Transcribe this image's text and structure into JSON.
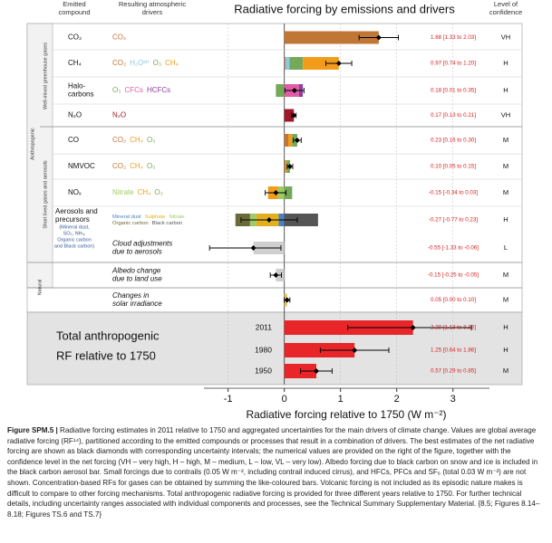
{
  "chart_data": {
    "type": "bar",
    "title": "Radiative forcing by emissions and drivers",
    "headers": {
      "compound": [
        "Emitted",
        "compound"
      ],
      "drivers": [
        "Resulting atmospheric",
        "drivers"
      ],
      "confidence": [
        "Level of",
        "confidence"
      ]
    },
    "groups": {
      "anthropogenic": "Anthropogenic",
      "wmghg": "Well-mixed greenhouse gases",
      "short_lived": "Short lived gases and aerosols",
      "natural": "Natural"
    },
    "xlabel": "Radiative forcing relative to 1750 (W m⁻²)",
    "xlim": [
      -1.43,
      3.65
    ],
    "xticks": [
      -1,
      0,
      1,
      2,
      3
    ],
    "grid": true,
    "rows": [
      {
        "compound": [
          "CO₂"
        ],
        "value": 1.68,
        "low": 1.33,
        "high": 2.03,
        "value_label": "1.68 [1.33 to 2.03]",
        "confidence": "VH",
        "segments": [
          {
            "name": "CO₂",
            "color": "#c07634",
            "value": 1.68
          }
        ]
      },
      {
        "compound": [
          "CH₄"
        ],
        "value": 0.97,
        "low": 0.74,
        "high": 1.2,
        "value_label": "0.97 [0.74 to 1.20]",
        "confidence": "H",
        "segments": [
          {
            "name": "CO₂",
            "color": "#c07634",
            "value": 0.02
          },
          {
            "name": "H₂Oˢᵗʳ",
            "color": "#8ec6e6",
            "value": 0.07
          },
          {
            "name": "O₃",
            "color": "#74a95a",
            "value": 0.24
          },
          {
            "name": "CH₄",
            "color": "#f39c1b",
            "value": 0.64
          }
        ]
      },
      {
        "compound": [
          "Halo-",
          "carbons"
        ],
        "value": 0.18,
        "low": 0.01,
        "high": 0.35,
        "value_label": "0.18 [0.01 to 0.35]",
        "confidence": "H",
        "segments": [
          {
            "name": "O₃",
            "color": "#74a95a",
            "value": -0.15
          },
          {
            "name": "CFCs",
            "color": "#e35ba8",
            "value": 0.26
          },
          {
            "name": "HCFCs",
            "color": "#8e3f98",
            "value": 0.07
          }
        ]
      },
      {
        "compound": [
          "N₂O"
        ],
        "value": 0.17,
        "low": 0.13,
        "high": 0.21,
        "value_label": "0.17 [0.13 to 0.21]",
        "confidence": "VH",
        "segments": [
          {
            "name": "N₂O",
            "color": "#a0192b",
            "value": 0.17
          }
        ]
      },
      {
        "compound": [
          "CO"
        ],
        "value": 0.23,
        "low": 0.16,
        "high": 0.3,
        "value_label": "0.23 [0.16 to 0.30]",
        "confidence": "M",
        "segments": [
          {
            "name": "CO₂",
            "color": "#c07634",
            "value": 0.07
          },
          {
            "name": "CH₄",
            "color": "#f39c1b",
            "value": 0.07
          },
          {
            "name": "O₃",
            "color": "#74a95a",
            "value": 0.09
          }
        ]
      },
      {
        "compound": [
          "NMVOC"
        ],
        "value": 0.1,
        "low": 0.05,
        "high": 0.15,
        "value_label": "0.10 [0.05 to 0.15]",
        "confidence": "M",
        "segments": [
          {
            "name": "CO₂",
            "color": "#c07634",
            "value": 0.02
          },
          {
            "name": "CH₄",
            "color": "#f39c1b",
            "value": 0.02
          },
          {
            "name": "O₃",
            "color": "#74a95a",
            "value": 0.06
          }
        ]
      },
      {
        "compound": [
          "NOₓ"
        ],
        "value": -0.15,
        "low": -0.34,
        "high": 0.03,
        "value_label": "-0.15 [-0.34 to 0.03]",
        "confidence": "M",
        "segments": [
          {
            "name": "Nitrate",
            "color": "#9ccc65",
            "value": -0.11
          },
          {
            "name": "CH₄",
            "color": "#f39c1b",
            "value": -0.18
          },
          {
            "name": "O₃",
            "color": "#74a95a",
            "value": 0.14
          }
        ]
      },
      {
        "compound": [
          "Aerosols and",
          "precursors"
        ],
        "compound_note": [
          "(Mineral dust,",
          "SO₂, NH₃,",
          "Organic carbon",
          "and Black carbon)"
        ],
        "value": -0.27,
        "low": -0.77,
        "high": 0.23,
        "value_label": "-0.27 [-0.77 to 0.23]",
        "confidence": "H",
        "segments": [
          {
            "name": "Mineral dust",
            "color": "#4a7fc0",
            "value": -0.1
          },
          {
            "name": "Sulphate",
            "color": "#e0b020",
            "value": -0.4
          },
          {
            "name": "Nitrate",
            "color": "#9ccc65",
            "value": -0.11
          },
          {
            "name": "Organic carbon",
            "color": "#6b6b3a",
            "value": -0.26
          },
          {
            "name": "Black carbon",
            "color": "#555555",
            "value": 0.6
          }
        ]
      },
      {
        "driver_label": [
          "Cloud adjustments",
          "due to aerosols"
        ],
        "value": -0.55,
        "low": -1.33,
        "high": -0.06,
        "value_label": "-0.55 [-1.33 to -0.06]",
        "confidence": "L",
        "color": "#cfcfcf"
      },
      {
        "driver_label": [
          "Albedo change",
          "due to land use"
        ],
        "value": -0.15,
        "low": -0.25,
        "high": -0.05,
        "value_label": "-0.15 [-0.25 to -0.05]",
        "confidence": "M",
        "color": "#cfcfcf"
      },
      {
        "driver_label": [
          "Changes in",
          "solar irradiance"
        ],
        "value": 0.05,
        "low": 0.0,
        "high": 0.1,
        "value_label": "0.05 [0.00 to 0.10]",
        "confidence": "M",
        "color": "#e0c060"
      }
    ],
    "totals": {
      "label": [
        "Total anthropogenic",
        "RF relative to 1750"
      ],
      "color": "#e8262a",
      "rows": [
        {
          "year": "2011",
          "value": 2.29,
          "low": 1.13,
          "high": 3.33,
          "value_label": "2.29 [1.13 to 3.33]",
          "confidence": "H"
        },
        {
          "year": "1980",
          "value": 1.25,
          "low": 0.64,
          "high": 1.86,
          "value_label": "1.25 [0.64 to 1.86]",
          "confidence": "H"
        },
        {
          "year": "1950",
          "value": 0.57,
          "low": 0.29,
          "high": 0.85,
          "value_label": "0.57 [0.29 to 0.85]",
          "confidence": "M"
        }
      ]
    }
  },
  "caption": {
    "label": "Figure SPM.5 |",
    "text": "Radiative forcing estimates in 2011 relative to 1750 and aggregated uncertainties for the main drivers of climate change. Values are global average radiative forcing (RF¹⁴), partitioned according to the emitted compounds or processes that result in a combination of drivers. The best estimates of the net radiative forcing are shown as black diamonds with corresponding uncertainty intervals; the numerical values are provided on the right of the figure, together with the confidence level in the net forcing (VH – very high, H – high, M – medium, L – low, VL – very low). Albedo forcing due to black carbon on snow and ice is included in the black carbon aerosol bar. Small forcings due to contrails (0.05 W m⁻², including contrail induced cirrus), and HFCs, PFCs and SF₆ (total 0.03 W m⁻²) are not shown. Concentration-based RFs for gases can be obtained by summing the like-coloured bars. Volcanic forcing is not included as its episodic nature makes is difficult to compare to other forcing mechanisms. Total anthropogenic radiative forcing is provided for three different years relative to 1750. For further technical details, including uncertainty ranges associated with individual components and processes, see the Technical Summary Supplementary Material. {8.5; Figures 8.14–8.18; Figures TS.6 and TS.7}"
  }
}
